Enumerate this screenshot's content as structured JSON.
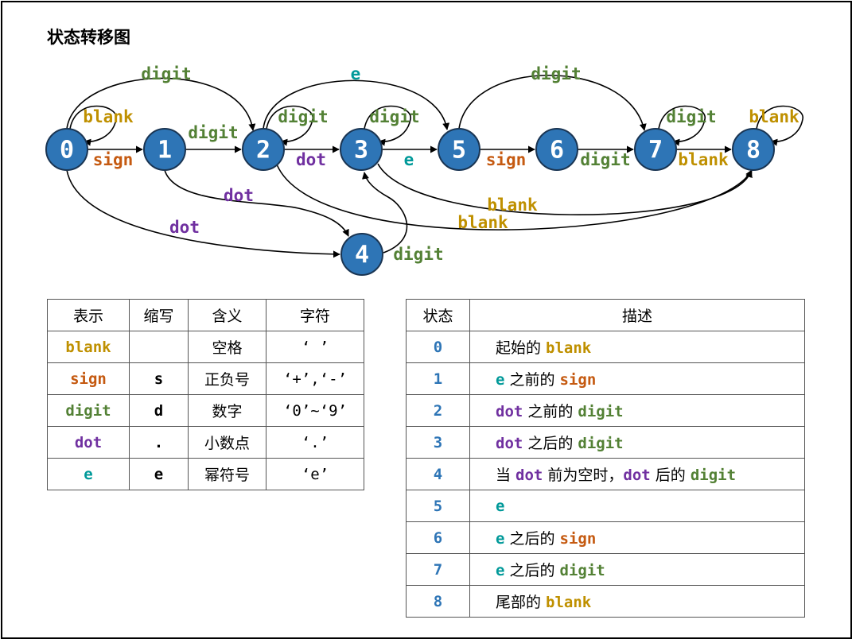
{
  "title": "状态转移图",
  "colors": {
    "node_fill": "#2e75b6",
    "node_stroke": "#1a3553",
    "blank": "#bf9000",
    "sign": "#c55a11",
    "digit": "#538135",
    "dot": "#7030a0",
    "e": "#009999",
    "state_num": "#2e75b6"
  },
  "diagram": {
    "nodes": [
      {
        "id": "0",
        "label": "0"
      },
      {
        "id": "1",
        "label": "1"
      },
      {
        "id": "2",
        "label": "2"
      },
      {
        "id": "3",
        "label": "3"
      },
      {
        "id": "5",
        "label": "5"
      },
      {
        "id": "6",
        "label": "6"
      },
      {
        "id": "7",
        "label": "7"
      },
      {
        "id": "8",
        "label": "8"
      },
      {
        "id": "4",
        "label": "4"
      }
    ],
    "edges": [
      {
        "from": "0",
        "to": "0",
        "label": "blank"
      },
      {
        "from": "0",
        "to": "1",
        "label": "sign"
      },
      {
        "from": "0",
        "to": "2",
        "label": "digit"
      },
      {
        "from": "0",
        "to": "4",
        "label": "dot"
      },
      {
        "from": "1",
        "to": "2",
        "label": "digit"
      },
      {
        "from": "1",
        "to": "4",
        "label": "dot"
      },
      {
        "from": "2",
        "to": "2",
        "label": "digit"
      },
      {
        "from": "2",
        "to": "3",
        "label": "dot"
      },
      {
        "from": "2",
        "to": "5",
        "label": "e"
      },
      {
        "from": "2",
        "to": "8",
        "label": "blank"
      },
      {
        "from": "3",
        "to": "3",
        "label": "digit"
      },
      {
        "from": "3",
        "to": "5",
        "label": "e"
      },
      {
        "from": "3",
        "to": "8",
        "label": "blank"
      },
      {
        "from": "4",
        "to": "3",
        "label": "digit"
      },
      {
        "from": "5",
        "to": "6",
        "label": "sign"
      },
      {
        "from": "5",
        "to": "7",
        "label": "digit"
      },
      {
        "from": "6",
        "to": "7",
        "label": "digit"
      },
      {
        "from": "7",
        "to": "7",
        "label": "digit"
      },
      {
        "from": "7",
        "to": "8",
        "label": "blank"
      },
      {
        "from": "8",
        "to": "8",
        "label": "blank"
      }
    ]
  },
  "symbol_table": {
    "headers": [
      "表示",
      "缩写",
      "含义",
      "字符"
    ],
    "rows": [
      {
        "token": "blank",
        "abbr": "",
        "meaning": "空格",
        "chars": "‘ ’"
      },
      {
        "token": "sign",
        "abbr": "s",
        "meaning": "正负号",
        "chars": "‘+’,‘-’"
      },
      {
        "token": "digit",
        "abbr": "d",
        "meaning": "数字",
        "chars": "‘0’~‘9’"
      },
      {
        "token": "dot",
        "abbr": ".",
        "meaning": "小数点",
        "chars": "‘.’"
      },
      {
        "token": "e",
        "abbr": "e",
        "meaning": "幂符号",
        "chars": "‘e’"
      }
    ]
  },
  "state_table": {
    "headers": [
      "状态",
      "描述"
    ],
    "rows": [
      {
        "state": "0",
        "parts": [
          {
            "text": "起始的 "
          },
          {
            "token": "blank"
          }
        ]
      },
      {
        "state": "1",
        "parts": [
          {
            "token": "e"
          },
          {
            "text": " 之前的 "
          },
          {
            "token": "sign"
          }
        ]
      },
      {
        "state": "2",
        "parts": [
          {
            "token": "dot"
          },
          {
            "text": " 之前的 "
          },
          {
            "token": "digit"
          }
        ]
      },
      {
        "state": "3",
        "parts": [
          {
            "token": "dot"
          },
          {
            "text": " 之后的 "
          },
          {
            "token": "digit"
          }
        ]
      },
      {
        "state": "4",
        "parts": [
          {
            "text": "当 "
          },
          {
            "token": "dot"
          },
          {
            "text": " 前为空时，"
          },
          {
            "token": "dot"
          },
          {
            "text": " 后的 "
          },
          {
            "token": "digit"
          }
        ]
      },
      {
        "state": "5",
        "parts": [
          {
            "token": "e"
          }
        ]
      },
      {
        "state": "6",
        "parts": [
          {
            "token": "e"
          },
          {
            "text": " 之后的 "
          },
          {
            "token": "sign"
          }
        ]
      },
      {
        "state": "7",
        "parts": [
          {
            "token": "e"
          },
          {
            "text": " 之后的 "
          },
          {
            "token": "digit"
          }
        ]
      },
      {
        "state": "8",
        "parts": [
          {
            "text": "尾部的 "
          },
          {
            "token": "blank"
          }
        ]
      }
    ]
  }
}
